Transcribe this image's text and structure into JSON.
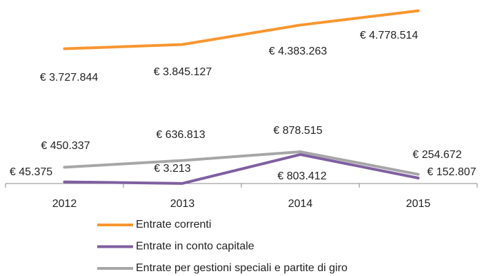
{
  "chart_data": {
    "type": "line",
    "categories": [
      "2012",
      "2013",
      "2014",
      "2015"
    ],
    "ylim": [
      0,
      5000000
    ],
    "series": [
      {
        "name": "Entrate correnti",
        "color": "#f7962f",
        "values": [
          3727844,
          3845127,
          4383263,
          4778514
        ],
        "value_labels": [
          "€ 3.727.844",
          "€ 3.845.127",
          "€ 4.383.263",
          "€ 4.778.514"
        ]
      },
      {
        "name": "Entrate in conto capitale",
        "color": "#7f5fa0",
        "values": [
          45375,
          3213,
          803412,
          152807
        ],
        "value_labels": [
          "€ 45.375",
          "€ 3.213",
          "€ 803.412",
          "€ 152.807"
        ]
      },
      {
        "name": "Entrate per gestioni speciali e partite di giro",
        "color": "#a6a6a6",
        "values": [
          450337,
          636813,
          878515,
          254672
        ],
        "value_labels": [
          "€ 450.337",
          "€ 636.813",
          "€ 878.515",
          "€ 254.672"
        ]
      }
    ]
  }
}
